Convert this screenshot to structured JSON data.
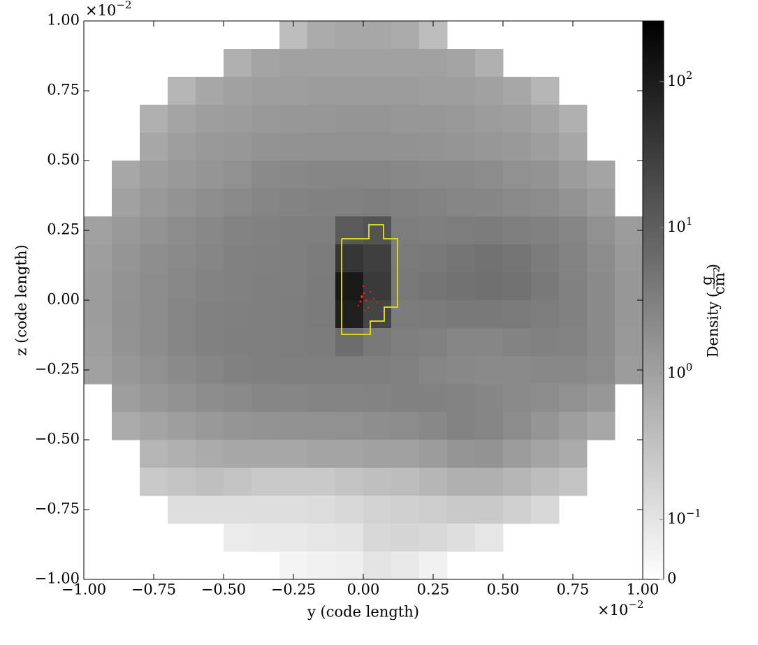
{
  "chart_data": {
    "type": "heatmap",
    "xlabel": "y  (code length)",
    "ylabel": "z  (code length)",
    "x_offset": {
      "base": "×10",
      "exp": "−2"
    },
    "y_offset": {
      "base": "×10",
      "exp": "−2"
    },
    "xlim": [
      -1,
      1
    ],
    "ylim": [
      -1,
      1
    ],
    "xticks": [
      {
        "value": -1,
        "label": "−1.00"
      },
      {
        "value": -0.75,
        "label": "−0.75"
      },
      {
        "value": -0.5,
        "label": "−0.50"
      },
      {
        "value": -0.25,
        "label": "−0.25"
      },
      {
        "value": 0,
        "label": "0.00"
      },
      {
        "value": 0.25,
        "label": "0.25"
      },
      {
        "value": 0.5,
        "label": "0.50"
      },
      {
        "value": 0.75,
        "label": "0.75"
      },
      {
        "value": 1,
        "label": "1.00"
      }
    ],
    "yticks": [
      {
        "value": -1,
        "label": "−1.00"
      },
      {
        "value": -0.75,
        "label": "−0.75"
      },
      {
        "value": -0.5,
        "label": "−0.50"
      },
      {
        "value": -0.25,
        "label": "−0.25"
      },
      {
        "value": 0,
        "label": "0.00"
      },
      {
        "value": 0.25,
        "label": "0.25"
      },
      {
        "value": 0.5,
        "label": "0.50"
      },
      {
        "value": 0.75,
        "label": "0.75"
      },
      {
        "value": 1,
        "label": "1.00"
      }
    ],
    "x": [
      -0.95,
      -0.85,
      -0.75,
      -0.65,
      -0.55,
      -0.45,
      -0.35,
      -0.25,
      -0.15,
      -0.05,
      0.05,
      0.15,
      0.25,
      0.35,
      0.45,
      0.55,
      0.65,
      0.75,
      0.85,
      0.95
    ],
    "y": [
      0.95,
      0.85,
      0.75,
      0.65,
      0.55,
      0.45,
      0.35,
      0.25,
      0.15,
      0.05,
      -0.05,
      -0.15,
      -0.25,
      -0.35,
      -0.45,
      -0.55,
      -0.65,
      -0.75,
      -0.85,
      -0.95
    ],
    "z": [
      [
        null,
        null,
        null,
        null,
        null,
        null,
        null,
        0.4,
        0.7,
        0.8,
        0.8,
        0.7,
        0.4,
        null,
        null,
        null,
        null,
        null,
        null,
        null
      ],
      [
        null,
        null,
        null,
        null,
        null,
        0.6,
        0.9,
        1,
        1,
        1,
        1,
        1,
        1,
        0.9,
        0.6,
        null,
        null,
        null,
        null,
        null
      ],
      [
        null,
        null,
        null,
        0.5,
        0.8,
        1,
        1.1,
        1.1,
        1.2,
        1.2,
        1.2,
        1.2,
        1.1,
        1.1,
        1,
        0.8,
        0.5,
        null,
        null,
        null
      ],
      [
        null,
        null,
        0.6,
        0.9,
        1.1,
        1.2,
        1.3,
        1.4,
        1.4,
        1.5,
        1.5,
        1.4,
        1.4,
        1.3,
        1.2,
        1.1,
        0.9,
        0.6,
        null,
        null
      ],
      [
        null,
        null,
        0.8,
        1.1,
        1.3,
        1.4,
        1.6,
        1.7,
        1.8,
        1.8,
        1.8,
        1.7,
        1.6,
        1.5,
        1.4,
        1.3,
        1.1,
        0.8,
        null,
        null
      ],
      [
        null,
        0.8,
        1.1,
        1.3,
        1.5,
        1.8,
        2.2,
        2.4,
        2.5,
        2.5,
        2.5,
        2.4,
        2.3,
        2.2,
        2,
        1.8,
        1.6,
        1.2,
        0.9,
        null
      ],
      [
        null,
        1,
        1.3,
        1.6,
        1.9,
        2.3,
        2.6,
        2.8,
        2.9,
        3,
        3.2,
        3,
        2.8,
        2.6,
        2.5,
        2.3,
        2,
        1.6,
        1.2,
        null
      ],
      [
        1,
        1.3,
        1.6,
        2,
        2.4,
        2.8,
        3,
        3.2,
        3.4,
        12,
        15,
        3.5,
        3.3,
        3.5,
        3.6,
        3.4,
        3,
        2.6,
        1.8,
        1.2
      ],
      [
        1.1,
        1.5,
        1.9,
        2.3,
        2.6,
        2.9,
        3.1,
        3.3,
        3.6,
        40,
        30,
        3.8,
        4,
        4.5,
        5,
        4.6,
        3.6,
        2.8,
        2,
        1.3
      ],
      [
        1.2,
        1.6,
        2,
        2.4,
        2.8,
        3,
        3.2,
        3.4,
        3.7,
        110,
        35,
        4,
        4.5,
        5,
        5.5,
        5,
        4,
        3,
        2.2,
        1.4
      ],
      [
        1.2,
        1.7,
        2.1,
        2.5,
        2.9,
        3.1,
        3.3,
        3.5,
        3.8,
        90,
        25,
        3.6,
        3.9,
        4,
        4,
        3.8,
        3.5,
        3,
        2.3,
        1.4
      ],
      [
        1.1,
        1.6,
        2,
        2.5,
        2.9,
        3.2,
        3.4,
        3.5,
        3.6,
        6,
        4,
        3.4,
        3,
        2.6,
        2.5,
        2.8,
        3,
        2.8,
        2.2,
        1.3
      ],
      [
        1,
        1.4,
        1.8,
        2.2,
        2.6,
        3,
        3.2,
        3.3,
        3.3,
        3.3,
        3.2,
        3,
        2.6,
        2.4,
        2.2,
        2.2,
        2.4,
        2.4,
        2,
        1.2
      ],
      [
        null,
        1.1,
        1.4,
        1.7,
        2,
        2.3,
        2.5,
        2.6,
        2.7,
        2.7,
        2.8,
        2.9,
        3,
        2.8,
        2.5,
        2.2,
        2,
        1.8,
        1.4,
        null
      ],
      [
        null,
        0.7,
        0.9,
        1.1,
        1.3,
        1.5,
        1.6,
        1.7,
        1.7,
        1.8,
        1.9,
        2.1,
        2.4,
        2.8,
        2.6,
        2,
        1.5,
        1.1,
        0.8,
        null
      ],
      [
        null,
        null,
        0.5,
        0.6,
        0.7,
        0.8,
        0.8,
        0.8,
        0.9,
        0.9,
        1,
        1,
        1.2,
        1.5,
        1.6,
        1.2,
        0.9,
        0.7,
        null,
        null
      ],
      [
        null,
        null,
        0.25,
        0.3,
        0.35,
        0.3,
        0.25,
        0.25,
        0.25,
        0.3,
        0.35,
        0.4,
        0.5,
        0.6,
        0.6,
        0.5,
        0.4,
        0.3,
        null,
        null
      ],
      [
        null,
        null,
        null,
        0.12,
        0.12,
        0.12,
        0.12,
        0.12,
        0.13,
        0.15,
        0.18,
        0.2,
        0.22,
        0.25,
        0.25,
        0.2,
        0.15,
        null,
        null,
        null
      ],
      [
        null,
        null,
        null,
        null,
        null,
        0.07,
        0.08,
        0.08,
        0.09,
        0.1,
        0.15,
        0.16,
        0.15,
        0.12,
        0.09,
        null,
        null,
        null,
        null,
        null
      ],
      [
        null,
        null,
        null,
        null,
        null,
        null,
        null,
        0.04,
        0.05,
        0.06,
        0.1,
        0.08,
        0.05,
        null,
        null,
        null,
        null,
        null,
        null,
        null
      ]
    ],
    "colorbar_label": "Density",
    "colorbar_unit_num": "g",
    "colorbar_unit_den": "cm²",
    "clim": [
      0,
      260
    ],
    "cscale": "symlog",
    "linthresh": 0.1,
    "linscale": 0.41,
    "cticks": [
      0,
      {
        "value": 0.1,
        "label": "10",
        "exp": "−1"
      },
      {
        "value": 1,
        "label": "10",
        "exp": "0"
      },
      {
        "value": 10,
        "label": "10",
        "exp": "1"
      },
      {
        "value": 100,
        "label": "10",
        "exp": "2"
      }
    ]
  }
}
